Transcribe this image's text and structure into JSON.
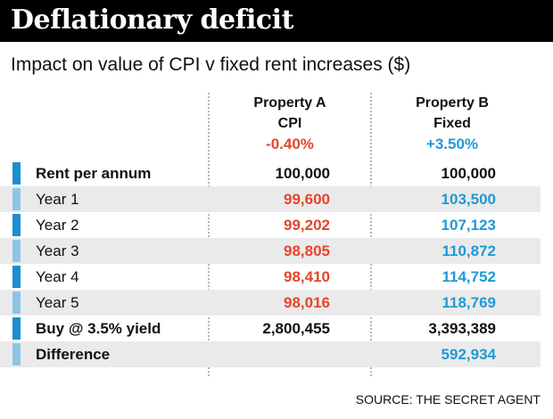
{
  "title": "Deflationary deficit",
  "subtitle": "Impact on value of CPI v fixed rent increases ($)",
  "source": "SOURCE: THE SECRET AGENT",
  "colors": {
    "red": "#e4452c",
    "blue": "#1e9ad6",
    "marker_dark": "#1a8fd0",
    "marker_light": "#8cc5e8",
    "black": "#111111"
  },
  "columns": [
    {
      "name_line1": "Property A",
      "name_line2": "CPI",
      "rate": "-0.40%",
      "color": "#e4452c"
    },
    {
      "name_line1": "Property B",
      "name_line2": "Fixed",
      "rate": "+3.50%",
      "color": "#1e9ad6"
    }
  ],
  "chart_data": {
    "type": "table",
    "title": "Deflationary deficit",
    "subtitle": "Impact on value of CPI v fixed rent increases ($)",
    "columns": [
      "Property A CPI -0.40%",
      "Property B Fixed +3.50%"
    ],
    "rows": [
      {
        "label": "Rent per annum",
        "a": "100,000",
        "b": "100,000",
        "a_color": "#111111",
        "b_color": "#111111",
        "bold_label": true
      },
      {
        "label": "Year 1",
        "a": "99,600",
        "b": "103,500",
        "a_color": "#e4452c",
        "b_color": "#1e9ad6",
        "bold_label": false
      },
      {
        "label": "Year 2",
        "a": "99,202",
        "b": "107,123",
        "a_color": "#e4452c",
        "b_color": "#1e9ad6",
        "bold_label": false
      },
      {
        "label": "Year 3",
        "a": "98,805",
        "b": "110,872",
        "a_color": "#e4452c",
        "b_color": "#1e9ad6",
        "bold_label": false
      },
      {
        "label": "Year 4",
        "a": "98,410",
        "b": "114,752",
        "a_color": "#e4452c",
        "b_color": "#1e9ad6",
        "bold_label": false
      },
      {
        "label": "Year 5",
        "a": "98,016",
        "b": "118,769",
        "a_color": "#e4452c",
        "b_color": "#1e9ad6",
        "bold_label": false
      },
      {
        "label": "Buy @ 3.5% yield",
        "a": "2,800,455",
        "b": "3,393,389",
        "a_color": "#111111",
        "b_color": "#111111",
        "bold_label": true
      },
      {
        "label": "Difference",
        "a": "",
        "b": "592,934",
        "a_color": "#111111",
        "b_color": "#1e9ad6",
        "bold_label": true
      }
    ]
  }
}
